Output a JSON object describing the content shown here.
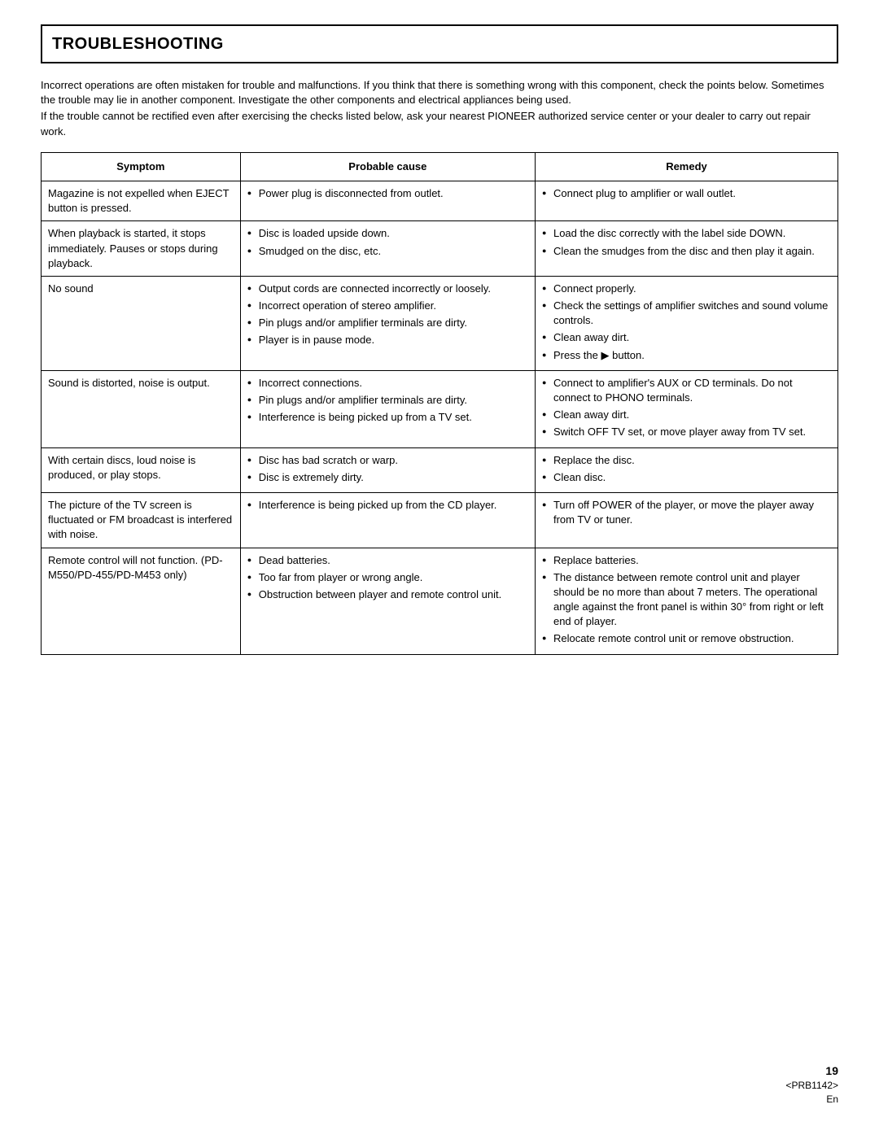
{
  "title": "TROUBLESHOOTING",
  "intro": {
    "p1": "Incorrect operations are often mistaken for trouble and malfunctions. If you think that there is something wrong with this component, check the points below. Sometimes the trouble may lie in another component. Investigate the other components and electrical appliances being used.",
    "p2": "If the trouble cannot be rectified even after exercising the checks listed below, ask your nearest PIONEER authorized service center or your dealer to carry out repair work."
  },
  "table": {
    "headers": {
      "symptom": "Symptom",
      "cause": "Probable cause",
      "remedy": "Remedy"
    },
    "rows": [
      {
        "symptom": "Magazine is not expelled when EJECT button is pressed.",
        "causes": [
          "Power plug is disconnected from outlet."
        ],
        "remedies": [
          "Connect plug to amplifier or wall outlet."
        ]
      },
      {
        "symptom": "When playback is started, it stops immediately. Pauses or stops during playback.",
        "causes": [
          "Disc is loaded upside down.",
          "Smudged on the disc, etc."
        ],
        "remedies": [
          "Load the disc correctly with the label side DOWN.",
          "Clean the smudges from the disc and then play it again."
        ]
      },
      {
        "symptom": "No sound",
        "causes": [
          "Output cords are connected incorrectly or loosely.",
          "Incorrect operation of stereo amplifier.",
          "Pin plugs and/or amplifier terminals are dirty.",
          "Player is in pause mode."
        ],
        "remedies": [
          "Connect properly.",
          "Check the settings of amplifier switches and sound volume controls.",
          "Clean away dirt.",
          "Press the ▶ button."
        ]
      },
      {
        "symptom": "Sound is distorted, noise is output.",
        "causes": [
          "Incorrect connections.",
          "Pin plugs and/or amplifier terminals are dirty.",
          "Interference is being picked up from a TV set."
        ],
        "remedies": [
          "Connect to amplifier's AUX or CD terminals. Do not connect to PHONO terminals.",
          "Clean away dirt.",
          "Switch OFF TV set, or move player away from TV set."
        ]
      },
      {
        "symptom": "With certain discs, loud noise is produced, or play stops.",
        "causes": [
          "Disc has bad scratch or warp.",
          "Disc is extremely dirty."
        ],
        "remedies": [
          "Replace the disc.",
          "Clean disc."
        ]
      },
      {
        "symptom": "The picture of the TV screen is fluctuated or FM broadcast is interfered with noise.",
        "causes": [
          "Interference is being picked up from the CD player."
        ],
        "remedies": [
          "Turn off POWER of the player, or move the player away from TV or tuner."
        ]
      },
      {
        "symptom": "Remote control will not function. (PD-M550/PD-455/PD-M453 only)",
        "causes": [
          "Dead batteries.",
          "Too far from player or wrong angle.",
          "Obstruction between player and remote control unit."
        ],
        "remedies": [
          "Replace batteries.",
          "The distance between remote control unit and player should be no more than about 7 meters. The operational angle against the front panel is within 30° from right or left end of player.",
          "Relocate remote control unit or remove obstruction."
        ]
      }
    ]
  },
  "footer": {
    "page": "19",
    "code": "<PRB1142>",
    "lang": "En"
  }
}
